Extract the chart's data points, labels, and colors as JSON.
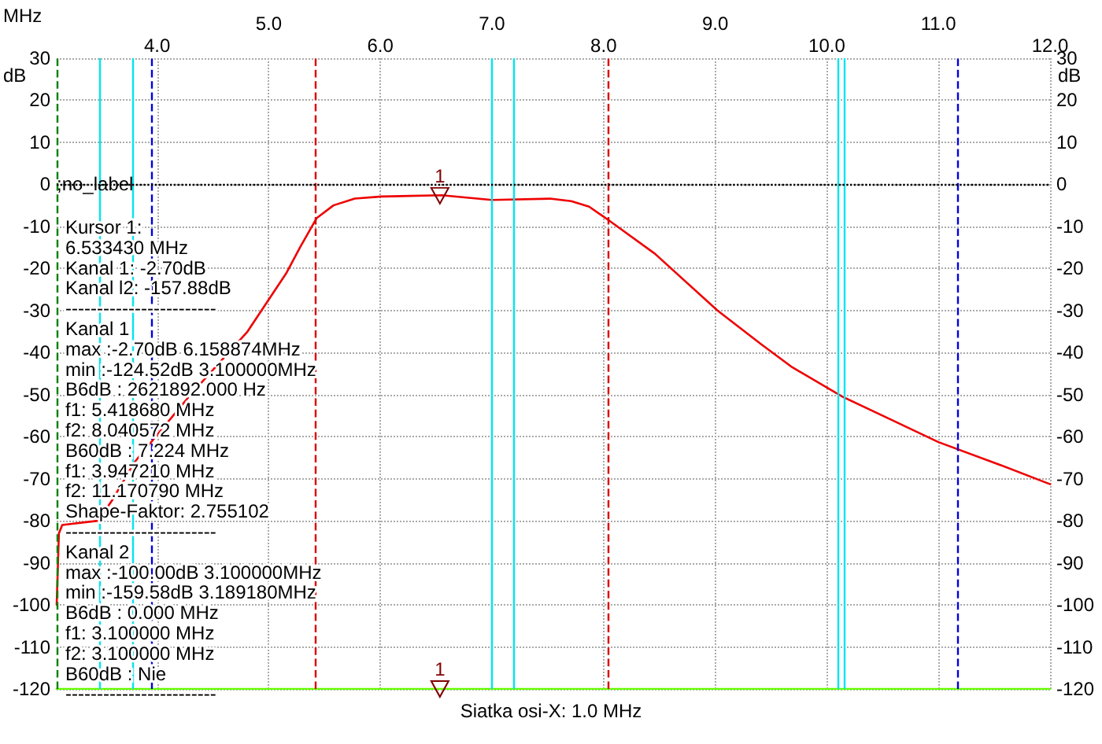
{
  "chart_data": {
    "type": "line",
    "xlabel": "MHz",
    "ylabel": "dB",
    "y2label": "dB",
    "xlim": [
      3.1,
      12
    ],
    "xticks": [
      {
        "value": 4,
        "label": "4.0"
      },
      {
        "value": 6,
        "label": "6.0"
      },
      {
        "value": 8,
        "label": "8.0"
      },
      {
        "value": 10,
        "label": "10.0"
      },
      {
        "value": 12,
        "label": "12.0"
      }
    ],
    "x2lim": [
      3.1,
      12
    ],
    "x2ticks": [
      {
        "value": 5,
        "label": "5.0"
      },
      {
        "value": 7,
        "label": "7.0"
      },
      {
        "value": 9,
        "label": "9.0"
      },
      {
        "value": 11,
        "label": "11.0"
      }
    ],
    "ylim": [
      -120,
      30
    ],
    "yticks": [
      -120,
      -110,
      -100,
      -90,
      -80,
      -70,
      -60,
      -50,
      -40,
      -30,
      -20,
      -10,
      0,
      10,
      20,
      30
    ],
    "y2lim": [
      -120,
      30
    ],
    "y2ticks": [
      -120,
      -110,
      -100,
      -90,
      -80,
      -70,
      -60,
      -50,
      -40,
      -30,
      -20,
      -10,
      0,
      10,
      20,
      30
    ],
    "grid": true,
    "marker": "none",
    "line_style": "solid",
    "series": [
      {
        "color": "#ee0000",
        "x": [
          3.1,
          3.12,
          3.15,
          3.47,
          3.6,
          3.8,
          4.3,
          4.81,
          5.16,
          5.28,
          5.43,
          5.58,
          5.77,
          6.01,
          6.55,
          7.0,
          7.52,
          7.71,
          7.87,
          8.06,
          8.46,
          9.02,
          9.41,
          9.69,
          10.14,
          10.58,
          11.0,
          11.53,
          12.0
        ],
        "values": [
          -100,
          -83,
          -81,
          -80,
          -75,
          -66,
          -50,
          -35,
          -21,
          -15,
          -8,
          -5,
          -3.4,
          -2.9,
          -2.6,
          -3.7,
          -3.4,
          -4,
          -5.3,
          -8.8,
          -16.5,
          -30,
          -38,
          -43.5,
          -50.5,
          -56,
          -61.3,
          -66.5,
          -71.3
        ]
      },
      {
        "color": "#66ff00",
        "x": [
          3.1,
          12
        ],
        "values": [
          -120,
          -120
        ]
      }
    ],
    "ref_lines": [
      {
        "axis": "x",
        "value": 3.1,
        "color": "#008000",
        "line_style": "dashed"
      },
      {
        "axis": "x",
        "value": 3.48,
        "color": "#00e5ee",
        "line_style": "solid"
      },
      {
        "axis": "x",
        "value": 3.78,
        "color": "#00e5ee",
        "line_style": "solid"
      },
      {
        "axis": "x",
        "value": 3.94721,
        "color": "#0000dd",
        "line_style": "dashed"
      },
      {
        "axis": "x",
        "value": 5.41868,
        "color": "#dd0000",
        "line_style": "dashed"
      },
      {
        "axis": "x",
        "value": 7.0,
        "color": "#00e5ee",
        "line_style": "solid"
      },
      {
        "axis": "x",
        "value": 7.2,
        "color": "#00e5ee",
        "line_style": "solid"
      },
      {
        "axis": "x",
        "value": 8.040572,
        "color": "#dd0000",
        "line_style": "dashed"
      },
      {
        "axis": "x",
        "value": 10.1,
        "color": "#00e5ee",
        "line_style": "solid"
      },
      {
        "axis": "x",
        "value": 10.16,
        "color": "#00e5ee",
        "line_style": "solid"
      },
      {
        "axis": "x",
        "value": 11.17079,
        "color": "#0000dd",
        "line_style": "dashed"
      },
      {
        "axis": "y",
        "value": 0,
        "label": ";no_label",
        "color": "#000000",
        "line_style": "dotted"
      }
    ],
    "annotations": [
      {
        "text": "1",
        "x": 6.53343,
        "y": -2.7
      },
      {
        "text": "1",
        "x": 6.53343,
        "y": -120
      },
      "Kursor 1:",
      "6.533430 MHz",
      "Kanal 1: -2.70dB",
      "Kanal l2: -157.88dB",
      "------------------------",
      "Kanal 1",
      "max :-2.70dB 6.158874MHz",
      "min :-124.52dB 3.100000MHz",
      "B6dB : 2621892.000 Hz",
      "f1: 5.418680 MHz",
      "f2: 8.040572 MHz",
      "B60dB : 7.224 MHz",
      "f1: 3.947210 MHz",
      "f2: 11.170790 MHz",
      "Shape-Faktor: 2.755102",
      "------------------------",
      "Kanal 2",
      "max :-100.00dB 3.100000MHz",
      "min :-159.58dB 3.189180MHz",
      "B6dB : 0.000 MHz",
      "f1: 3.100000 MHz",
      "f2: 3.100000 MHz",
      "B60dB : Nie",
      "------------------------",
      "Siatka osi-X: 1.0 MHz"
    ]
  }
}
